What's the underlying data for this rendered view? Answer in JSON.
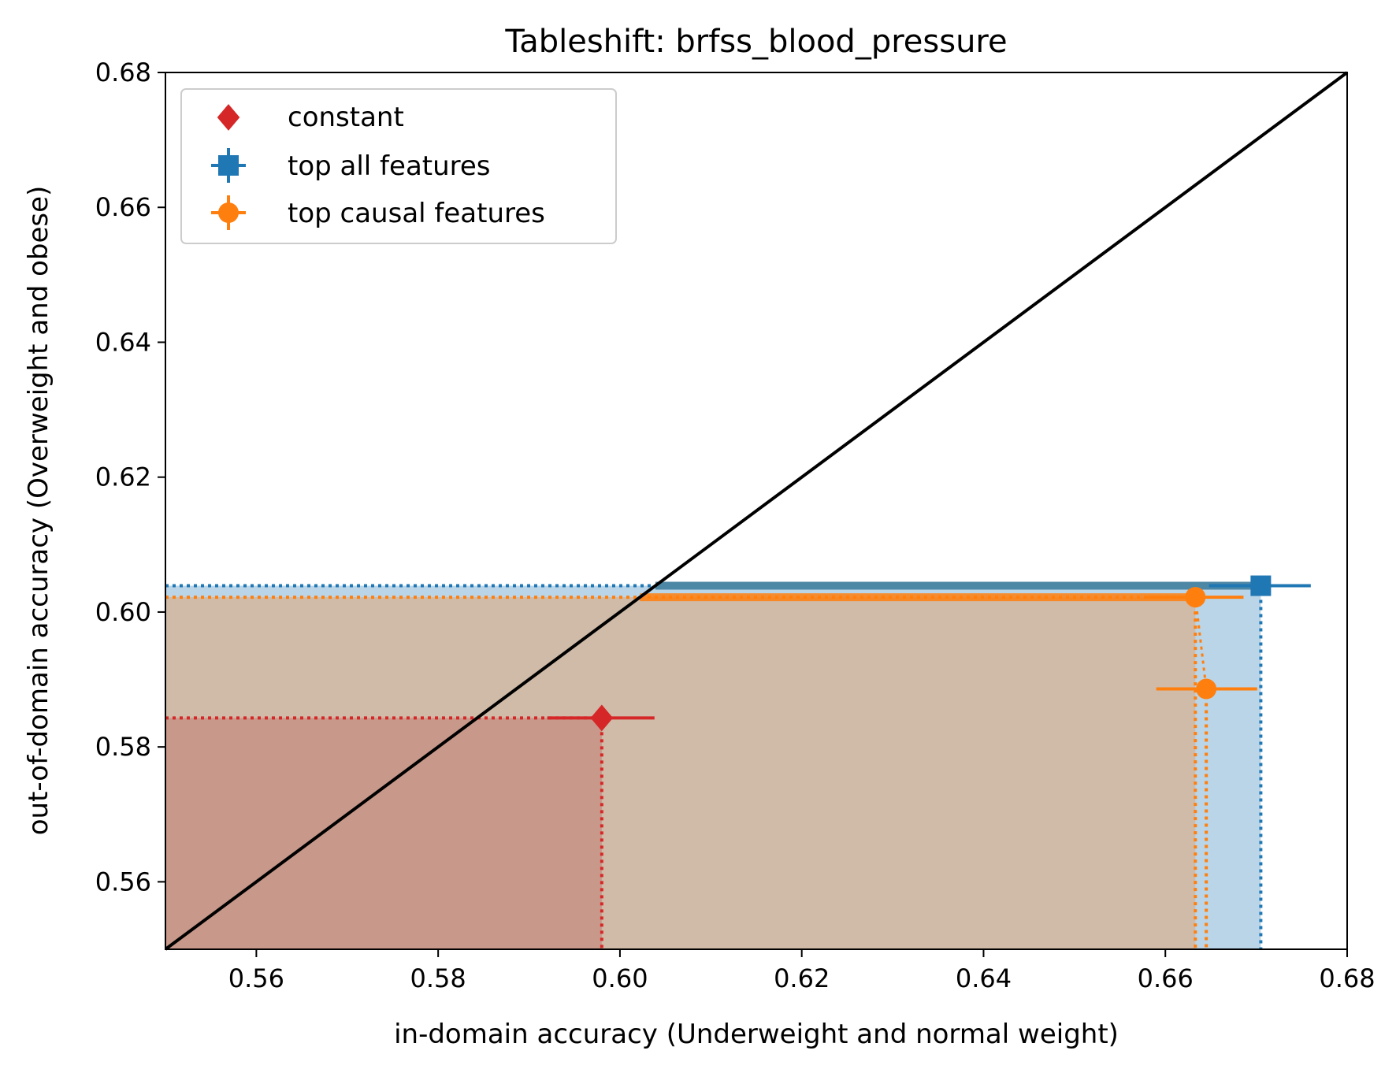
{
  "chart_data": {
    "type": "scatter",
    "title": "Tableshift: brfss_blood_pressure",
    "xlabel": "in-domain accuracy (Underweight and normal weight)",
    "ylabel": "out-of-domain accuracy (Overweight and obese)",
    "xlim": [
      0.55,
      0.68
    ],
    "ylim": [
      0.55,
      0.68
    ],
    "xticks": [
      "0.56",
      "0.58",
      "0.60",
      "0.62",
      "0.64",
      "0.66",
      "0.68"
    ],
    "yticks": [
      "0.56",
      "0.58",
      "0.60",
      "0.62",
      "0.64",
      "0.66",
      "0.68"
    ],
    "legend_position": "upper-left",
    "diagonal": true,
    "series": [
      {
        "name": "constant",
        "marker": "diamond",
        "color": "#d62728",
        "shade": "#c8998a",
        "points": [
          {
            "x": 0.598,
            "y": 0.5843,
            "xerr": [
              0.592,
              0.6038
            ],
            "yerr": [
              0.5838,
              0.5848
            ]
          }
        ]
      },
      {
        "name": "top all features",
        "marker": "square",
        "color": "#1f77b4",
        "shade": "#bad5e8",
        "points": [
          {
            "x": 0.6705,
            "y": 0.6039,
            "xerr": [
              0.6648,
              0.676
            ],
            "yerr": [
              0.6032,
              0.6046
            ]
          }
        ]
      },
      {
        "name": "top causal features",
        "marker": "circle",
        "color": "#ff7f0e",
        "shade": "#d0bba8",
        "points": [
          {
            "x": 0.6633,
            "y": 0.6022,
            "xerr": [
              0.658,
              0.6686
            ],
            "yerr": [
              0.6015,
              0.6029
            ]
          },
          {
            "x": 0.6645,
            "y": 0.5886,
            "xerr": [
              0.659,
              0.6701
            ],
            "yerr": [
              0.5879,
              0.5893
            ]
          }
        ]
      }
    ],
    "colors": {
      "diagonal": "#000000",
      "overlap_band": "#4d87a6"
    }
  }
}
